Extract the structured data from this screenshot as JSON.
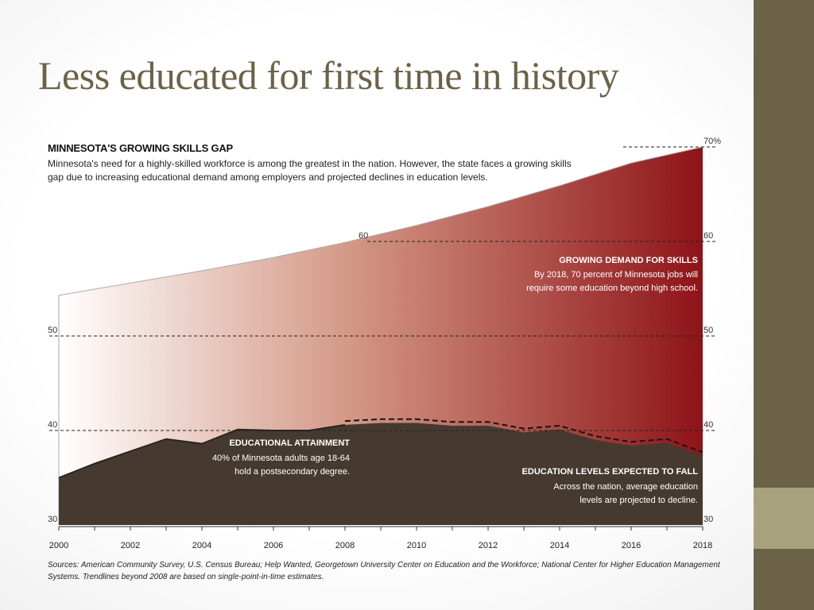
{
  "slide": {
    "title": "Less educated for first time in history"
  },
  "chart_data": {
    "type": "area",
    "title": "MINNESOTA'S GROWING SKILLS GAP",
    "subtitle": "Minnesota's need for a highly-skilled workforce is among the greatest in the nation.  However, the state faces a growing skills gap due to increasing educational demand among employers and projected declines in education levels.",
    "ylim": [
      30,
      72
    ],
    "xlim": [
      2000,
      2018
    ],
    "x_ticks": [
      "2000",
      "2002",
      "2004",
      "2006",
      "2008",
      "2010",
      "2012",
      "2014",
      "2016",
      "2018"
    ],
    "y_ticks_left": [
      "30",
      "40",
      "50"
    ],
    "y_ticks_right": [
      "30",
      "40",
      "50",
      "60",
      "70%"
    ],
    "mid_tick_label": "60",
    "grid": "dashed reference lines at 40, 50, 60, 70",
    "series": [
      {
        "name": "GROWING DEMAND FOR SKILLS",
        "x": [
          2000,
          2002,
          2004,
          2006,
          2008,
          2010,
          2012,
          2014,
          2016,
          2018
        ],
        "values": [
          54.3,
          55.6,
          56.9,
          58.3,
          59.9,
          61.7,
          63.7,
          65.9,
          68.3,
          70.0
        ],
        "colors": [
          "#ffffff",
          "#d49886",
          "#8e1318"
        ]
      },
      {
        "name": "EDUCATIONAL ATTAINMENT",
        "x": [
          2000,
          2001,
          2002,
          2003,
          2004,
          2005,
          2006,
          2007,
          2008
        ],
        "values": [
          35.0,
          36.5,
          37.8,
          39.1,
          38.6,
          40.1,
          40.0,
          40.0,
          40.6
        ],
        "line_style": "solid",
        "color": "#463a30"
      },
      {
        "name": "EDUCATION LEVELS EXPECTED TO FALL",
        "x": [
          2008,
          2009,
          2010,
          2011,
          2012,
          2013,
          2014,
          2015,
          2016,
          2017,
          2018
        ],
        "values": [
          40.6,
          40.8,
          40.8,
          40.5,
          40.5,
          39.8,
          40.1,
          39.0,
          38.4,
          38.7,
          37.3
        ],
        "line_style": "dashed",
        "color": "#463a30"
      }
    ],
    "annotations": [
      {
        "title": "GROWING DEMAND FOR SKILLS",
        "lines": [
          "By 2018, 70 percent of Minnesota jobs will",
          "require some education beyond high school."
        ]
      },
      {
        "title": "EDUCATIONAL ATTAINMENT",
        "lines": [
          "40% of Minnesota adults age 18-64",
          "hold a postsecondary degree."
        ]
      },
      {
        "title": "EDUCATION LEVELS EXPECTED TO FALL",
        "lines": [
          "Across the nation, average education",
          "levels are projected to decline."
        ]
      }
    ],
    "sources": "Sources: American Community Survey, U.S. Census Bureau; Help Wanted, Georgetown University Center on Education and the Workforce; National Center for Higher Education Management Systems. Trendlines beyond 2008 are based on single-point-in-time estimates."
  }
}
